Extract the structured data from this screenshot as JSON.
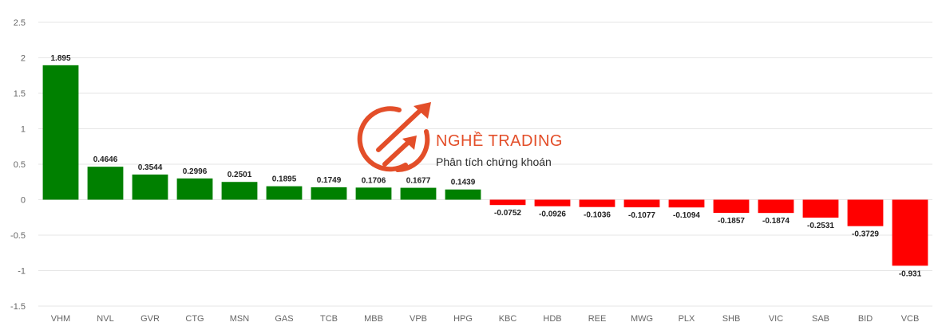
{
  "chart_data": {
    "type": "bar",
    "categories": [
      "VHM",
      "NVL",
      "GVR",
      "CTG",
      "MSN",
      "GAS",
      "TCB",
      "MBB",
      "VPB",
      "HPG",
      "KBC",
      "HDB",
      "REE",
      "MWG",
      "PLX",
      "SHB",
      "VIC",
      "SAB",
      "BID",
      "VCB"
    ],
    "values": [
      1.895,
      0.4646,
      0.3544,
      0.2996,
      0.2501,
      0.1895,
      0.1749,
      0.1706,
      0.1677,
      0.1439,
      -0.0752,
      -0.0926,
      -0.1036,
      -0.1077,
      -0.1094,
      -0.1857,
      -0.1874,
      -0.2531,
      -0.3729,
      -0.931
    ],
    "value_labels": [
      "1.895",
      "0.4646",
      "0.3544",
      "0.2996",
      "0.2501",
      "0.1895",
      "0.1749",
      "0.1706",
      "0.1677",
      "0.1439",
      "-0.0752",
      "-0.0926",
      "-0.1036",
      "-0.1077",
      "-0.1094",
      "-0.1857",
      "-0.1874",
      "-0.2531",
      "-0.3729",
      "-0.931"
    ],
    "ylim": [
      -1.5,
      2.5
    ],
    "y_ticks": [
      2.5,
      2,
      1.5,
      1,
      0.5,
      0,
      -0.5,
      -1,
      -1.5
    ],
    "y_tick_labels": [
      "2.5",
      "2",
      "1.5",
      "1",
      "0.5",
      "0",
      "-0.5",
      "-1",
      "-1.5"
    ],
    "grid": true,
    "positive_color": "#008000",
    "negative_color": "#ff0000",
    "title": "",
    "xlabel": "",
    "ylabel": ""
  },
  "watermark": {
    "brand": "NGHỀ TRADING",
    "tagline": "Phân tích chứng khoán",
    "icon": "trend-arrows-logo",
    "color": "#e2451e"
  }
}
